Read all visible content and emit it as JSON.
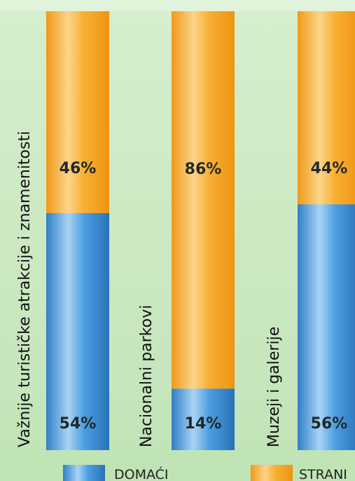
{
  "chart_data": {
    "type": "bar",
    "stacked": true,
    "orientation": "vertical",
    "categories": [
      "Važnije turističke atrakcije i znamenitosti",
      "Nacionalni parkovi",
      "Muzeji i galerije"
    ],
    "series": [
      {
        "name": "DOMAĆI",
        "values": [
          54,
          14,
          56
        ],
        "labels": [
          "54%",
          "14%",
          "56%"
        ],
        "color": "#3a8fd6"
      },
      {
        "name": "STRANI",
        "values": [
          46,
          86,
          44
        ],
        "labels": [
          "46%",
          "86%",
          "44%"
        ],
        "color": "#f7a92c"
      }
    ],
    "ylim": [
      0,
      100
    ],
    "grid": false,
    "legend_position": "bottom"
  }
}
